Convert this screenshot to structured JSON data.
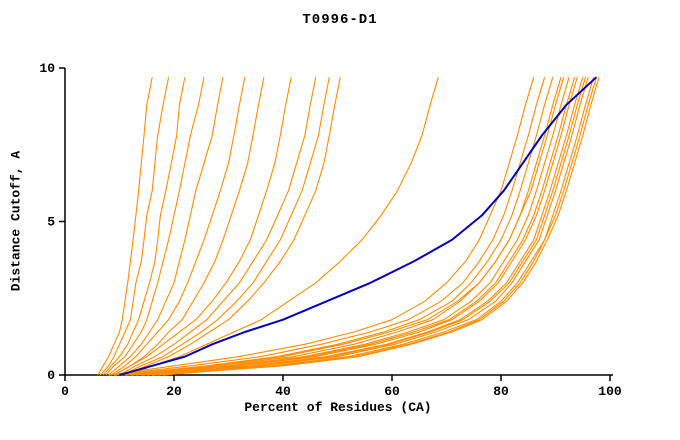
{
  "title": "T0996-D1",
  "axes": {
    "xlabel": "Percent of Residues (CA)",
    "ylabel": "Distance Cutoff, A",
    "x_ticks": [
      0,
      20,
      40,
      60,
      80,
      100
    ],
    "y_ticks": [
      0,
      5,
      10
    ],
    "xlim": [
      0,
      100
    ],
    "ylim": [
      0,
      10
    ]
  },
  "colors": {
    "model_line": "#ff8c00",
    "reference_line": "#0000bb",
    "axis": "#000000",
    "background": "#ffffff"
  },
  "chart_data": {
    "type": "line",
    "title": "T0996-D1",
    "xlabel": "Percent of Residues (CA)",
    "ylabel": "Distance Cutoff, A",
    "xlim": [
      0,
      100
    ],
    "ylim": [
      0,
      10
    ],
    "grid": false,
    "legend": "none",
    "description": "Cumulative distance-cutoff curves: percent of CA residues (x) under each distance cutoff in Angstroms (y). Orange = predicted models, blue = highlighted model.",
    "y_levels": [
      0,
      0.3,
      0.6,
      1.0,
      1.4,
      1.8,
      2.4,
      3.0,
      3.7,
      4.4,
      5.2,
      6.0,
      6.9,
      7.8,
      8.8,
      9.7
    ],
    "orange_series_x": [
      [
        6,
        7,
        8,
        9,
        10,
        10.5,
        11,
        11.5,
        12,
        12.5,
        13,
        13.5,
        14,
        14.5,
        15,
        16
      ],
      [
        6.5,
        8,
        9,
        10,
        11,
        12,
        12.5,
        13,
        14,
        14.5,
        15,
        16,
        16.5,
        17,
        18,
        19
      ],
      [
        7,
        8.5,
        10,
        11.5,
        12.5,
        13.5,
        14.5,
        15.5,
        16.5,
        17,
        17.5,
        18.5,
        19.5,
        20.5,
        21,
        22
      ],
      [
        7.5,
        9,
        11,
        12.5,
        14,
        15,
        16,
        17,
        18,
        19,
        20,
        21,
        22,
        23,
        24.5,
        25.5
      ],
      [
        8,
        10,
        12,
        14,
        15.5,
        17,
        18.5,
        20,
        21,
        22,
        23,
        24,
        25.5,
        27,
        28,
        29
      ],
      [
        8.5,
        11,
        13,
        15,
        17,
        19,
        21,
        22.5,
        24,
        25.5,
        27,
        28.5,
        30,
        31,
        32,
        33
      ],
      [
        9,
        12,
        14.5,
        17,
        19,
        21.5,
        23.5,
        25.5,
        27.5,
        29,
        30.5,
        32,
        33.5,
        34.5,
        35.5,
        36.5
      ],
      [
        9,
        12,
        15,
        18,
        21,
        24,
        27,
        29.5,
        32,
        34,
        35.5,
        37,
        38.5,
        39.5,
        40.5,
        41.5
      ],
      [
        10,
        13,
        16.5,
        20,
        23,
        26,
        29,
        32,
        34.5,
        37,
        39,
        41,
        42.5,
        44,
        45,
        46
      ],
      [
        10.5,
        14,
        18,
        21.5,
        25,
        28,
        31.5,
        34.5,
        37,
        39.5,
        41.5,
        43.5,
        45,
        46.5,
        47.5,
        48.5
      ],
      [
        11,
        15,
        19,
        23,
        26.5,
        30,
        33.5,
        36.5,
        39.5,
        42,
        44,
        46,
        47.5,
        48.5,
        49.5,
        50.5
      ],
      [
        12,
        16,
        21,
        26,
        31,
        36,
        41,
        46,
        50.5,
        54.5,
        58,
        61,
        63.5,
        65.5,
        67,
        68.5
      ],
      [
        8,
        20,
        32,
        44,
        53,
        60,
        66,
        70,
        73.5,
        76,
        78,
        80,
        81.5,
        83,
        84.5,
        86
      ],
      [
        9,
        23,
        36,
        47,
        56,
        63,
        69,
        73,
        76,
        78.5,
        80.5,
        82,
        83.5,
        85,
        86.5,
        88
      ],
      [
        10,
        26,
        39,
        50,
        58.5,
        65,
        71,
        74.5,
        77.5,
        80,
        82,
        83.5,
        85,
        86.5,
        88,
        89.5
      ],
      [
        11,
        28,
        42,
        53,
        61,
        67.5,
        72.5,
        76,
        79,
        81.5,
        83.5,
        85,
        86.5,
        88,
        89.5,
        91
      ],
      [
        12,
        30,
        44,
        55,
        63,
        69.5,
        74.5,
        78,
        80.5,
        83,
        85,
        86.5,
        88,
        89.5,
        91,
        92.5
      ],
      [
        13,
        32,
        46,
        57,
        65,
        71,
        76,
        79.5,
        82,
        84.5,
        86.5,
        88,
        89.5,
        91,
        92.5,
        94
      ],
      [
        14,
        34,
        48,
        59,
        66.5,
        72.5,
        77.5,
        81,
        83.5,
        86,
        87.5,
        89,
        90.5,
        92,
        93.5,
        95
      ],
      [
        15,
        36,
        50,
        60.5,
        68,
        74,
        79,
        82,
        84.5,
        87,
        88.5,
        90,
        91.5,
        93,
        94.5,
        96
      ],
      [
        16,
        38,
        52,
        62,
        69.5,
        75.5,
        80,
        83,
        85.5,
        88,
        89.5,
        91,
        92.5,
        94,
        95.5,
        97
      ],
      [
        17,
        40,
        54,
        63.5,
        71,
        76.5,
        81,
        84,
        86.5,
        88.5,
        90.5,
        92,
        93.5,
        95,
        96.5,
        98
      ],
      [
        12,
        27,
        40,
        51,
        59.5,
        66.5,
        72,
        76,
        79,
        81.5,
        83.5,
        85.5,
        87,
        88.5,
        90,
        91.5
      ],
      [
        14,
        31,
        45,
        56,
        64,
        70.5,
        75.5,
        79,
        81.5,
        84,
        86,
        87.5,
        89,
        90.5,
        92,
        93.5
      ],
      [
        16,
        35,
        49,
        59.5,
        67,
        73,
        78,
        81.5,
        84,
        86.5,
        88,
        89.5,
        91,
        92.5,
        94,
        95.5
      ],
      [
        18,
        39,
        53,
        63,
        70.5,
        76,
        80.5,
        83.5,
        86,
        88,
        90,
        91.5,
        93,
        94.5,
        96,
        97.5
      ]
    ],
    "blue_series_x": [
      10,
      16,
      22,
      27,
      33,
      40,
      48,
      56,
      64,
      71,
      76.5,
      80.5,
      84,
      87.5,
      92,
      97.5
    ]
  }
}
